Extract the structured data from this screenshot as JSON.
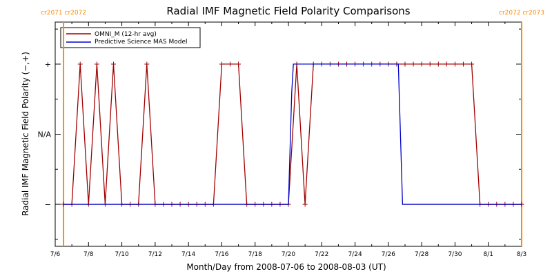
{
  "colors": {
    "omni": "#a00000",
    "mas": "#0000c8",
    "crossing": "#ff8c00",
    "frame": "#000000"
  },
  "chart_data": {
    "type": "line",
    "title": "Radial IMF Magnetic Field Polarity Comparisons",
    "xlabel": "Month/Day from 2008-07-06 to 2008-08-03 (UT)",
    "ylabel": "Radial IMF Magnetic Field Polarity (−,+)",
    "x_unit": "days from 2008-07-06 00:00 UT",
    "xlim": [
      0,
      28
    ],
    "ylim": [
      -1.6,
      1.6
    ],
    "x_ticks": [
      {
        "value": 0,
        "label": "7/6"
      },
      {
        "value": 2,
        "label": "7/8"
      },
      {
        "value": 4,
        "label": "7/10"
      },
      {
        "value": 6,
        "label": "7/12"
      },
      {
        "value": 8,
        "label": "7/14"
      },
      {
        "value": 10,
        "label": "7/16"
      },
      {
        "value": 12,
        "label": "7/18"
      },
      {
        "value": 14,
        "label": "7/20"
      },
      {
        "value": 16,
        "label": "7/22"
      },
      {
        "value": 18,
        "label": "7/24"
      },
      {
        "value": 20,
        "label": "7/26"
      },
      {
        "value": 22,
        "label": "7/28"
      },
      {
        "value": 24,
        "label": "7/30"
      },
      {
        "value": 26,
        "label": "8/1"
      },
      {
        "value": 28,
        "label": "8/3"
      }
    ],
    "y_ticks": [
      {
        "value": 1,
        "label": "+"
      },
      {
        "value": 0,
        "label": "N/A"
      },
      {
        "value": -1,
        "label": "−"
      }
    ],
    "crossings": [
      {
        "x": 0.5,
        "label": "cr2071 cr2072"
      },
      {
        "x": 28.0,
        "label": "cr2072 cr2073"
      }
    ],
    "legend_position": "top-left",
    "series": [
      {
        "name": "OMNI_M (12-hr avg)",
        "color_key": "omni",
        "markers": "plus",
        "x": [
          0.5,
          1.0,
          1.5,
          2.0,
          2.5,
          3.0,
          3.5,
          4.0,
          4.5,
          5.0,
          5.5,
          6.0,
          6.5,
          7.0,
          7.5,
          8.0,
          8.5,
          9.0,
          9.5,
          10.0,
          10.5,
          11.0,
          11.5,
          12.0,
          12.5,
          13.0,
          13.5,
          14.0,
          14.5,
          15.0,
          15.5,
          16.0,
          16.5,
          17.0,
          17.5,
          18.0,
          18.5,
          19.0,
          19.5,
          20.0,
          20.5,
          21.0,
          21.5,
          22.0,
          22.5,
          23.0,
          23.5,
          24.0,
          24.5,
          25.0,
          25.5,
          26.0,
          26.5,
          27.0,
          27.5,
          28.0
        ],
        "y": [
          -1,
          -1,
          1,
          -1,
          1,
          -1,
          1,
          -1,
          -1,
          -1,
          1,
          -1,
          -1,
          -1,
          -1,
          -1,
          -1,
          -1,
          -1,
          1,
          1,
          1,
          -1,
          -1,
          -1,
          -1,
          -1,
          -1,
          1,
          -1,
          1,
          1,
          1,
          1,
          1,
          1,
          1,
          1,
          1,
          1,
          1,
          1,
          1,
          1,
          1,
          1,
          1,
          1,
          1,
          1,
          -1,
          -1,
          -1,
          -1,
          -1,
          -1
        ]
      },
      {
        "name": "Predictive Science MAS Model",
        "color_key": "mas",
        "markers": "none",
        "x": [
          0.5,
          14.0,
          14.2,
          14.3,
          20.6,
          20.85,
          28.0
        ],
        "y": [
          -1,
          -1,
          0.6,
          1,
          1,
          -1,
          -1
        ]
      }
    ]
  }
}
